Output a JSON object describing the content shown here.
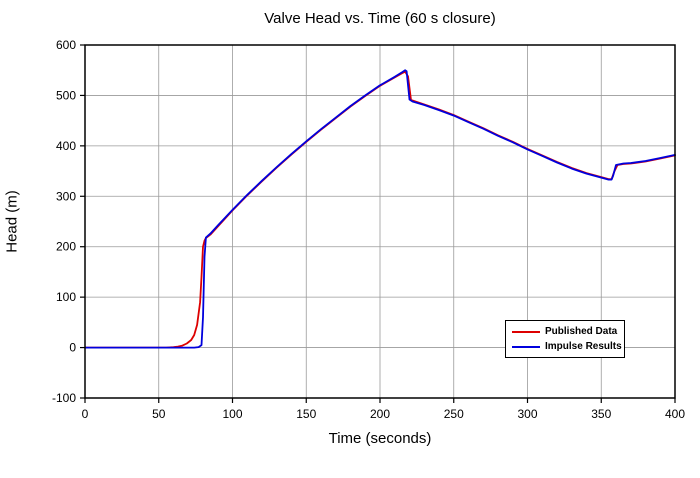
{
  "chart_data": {
    "type": "line",
    "title": "Valve Head vs. Time (60 s closure)",
    "xlabel": "Time (seconds)",
    "ylabel": "Head (m)",
    "xlim": [
      0,
      400
    ],
    "ylim": [
      -100,
      600
    ],
    "xticks": [
      0,
      50,
      100,
      150,
      200,
      250,
      300,
      350,
      400
    ],
    "yticks": [
      -100,
      0,
      100,
      200,
      300,
      400,
      500,
      600
    ],
    "grid": true,
    "grid_color": "#9a9a9a",
    "legend_position": "lower-right",
    "series": [
      {
        "name": "Published Data",
        "color": "#dd0000",
        "x": [
          0,
          10,
          20,
          30,
          40,
          50,
          55,
          60,
          63,
          66,
          69,
          72,
          74,
          76,
          78,
          79,
          80,
          81,
          82,
          85,
          90,
          100,
          110,
          120,
          130,
          140,
          150,
          160,
          170,
          180,
          190,
          200,
          210,
          215,
          217,
          219,
          221,
          230,
          240,
          250,
          260,
          270,
          280,
          290,
          300,
          310,
          320,
          330,
          340,
          350,
          355,
          357,
          359,
          361,
          365,
          370,
          380,
          390,
          400
        ],
        "y": [
          0,
          0,
          0,
          0,
          0,
          0,
          0,
          1,
          2,
          4,
          8,
          15,
          25,
          45,
          90,
          140,
          200,
          212,
          217,
          224,
          240,
          272,
          302,
          330,
          357,
          383,
          408,
          432,
          455,
          478,
          499,
          519,
          536,
          544,
          547,
          538,
          491,
          482,
          472,
          461,
          448,
          435,
          421,
          408,
          394,
          381,
          368,
          356,
          346,
          338,
          334,
          334,
          350,
          362,
          364,
          365,
          369,
          375,
          381
        ]
      },
      {
        "name": "Impulse Results",
        "color": "#0000dd",
        "x": [
          0,
          10,
          20,
          30,
          40,
          50,
          60,
          70,
          74,
          77,
          79,
          80,
          81,
          82,
          85,
          90,
          100,
          110,
          120,
          130,
          140,
          150,
          160,
          170,
          180,
          190,
          200,
          210,
          215,
          217,
          218,
          220,
          222,
          230,
          240,
          250,
          260,
          270,
          280,
          290,
          300,
          310,
          320,
          330,
          340,
          350,
          355,
          357,
          358,
          360,
          365,
          370,
          380,
          390,
          400
        ],
        "y": [
          0,
          0,
          0,
          0,
          0,
          0,
          0,
          0,
          0,
          1,
          5,
          60,
          180,
          218,
          226,
          242,
          273,
          303,
          331,
          358,
          384,
          409,
          433,
          456,
          479,
          500,
          520,
          537,
          546,
          550,
          548,
          492,
          488,
          481,
          471,
          460,
          447,
          434,
          420,
          407,
          393,
          380,
          367,
          355,
          345,
          337,
          333,
          333,
          340,
          362,
          365,
          366,
          370,
          376,
          382
        ]
      }
    ]
  }
}
